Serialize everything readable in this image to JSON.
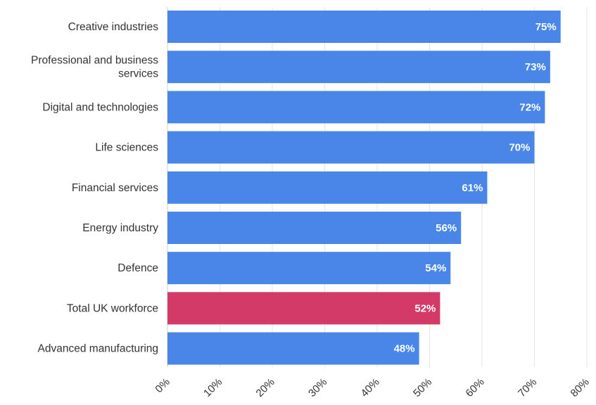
{
  "chart_data": {
    "type": "bar",
    "orientation": "horizontal",
    "categories": [
      "Creative industries",
      "Professional and business services",
      "Digital and technologies",
      "Life sciences",
      "Financial services",
      "Energy industry",
      "Defence",
      "Total UK workforce",
      "Advanced manufacturing"
    ],
    "category_label_lines": [
      [
        "Creative industries"
      ],
      [
        "Professional and business",
        "services"
      ],
      [
        "Digital and technologies"
      ],
      [
        "Life sciences"
      ],
      [
        "Financial services"
      ],
      [
        "Energy industry"
      ],
      [
        "Defence"
      ],
      [
        "Total UK workforce"
      ],
      [
        "Advanced manufacturing"
      ]
    ],
    "values": [
      75,
      73,
      72,
      70,
      61,
      56,
      54,
      52,
      48
    ],
    "data_labels": [
      "75%",
      "73%",
      "72%",
      "70%",
      "61%",
      "56%",
      "54%",
      "52%",
      "48%"
    ],
    "highlight_category": "Total UK workforce",
    "xlim": [
      0,
      80
    ],
    "x_ticks": [
      0,
      10,
      20,
      30,
      40,
      50,
      60,
      70,
      80
    ],
    "x_tick_labels": [
      "0%",
      "10%",
      "20%",
      "30%",
      "40%",
      "50%",
      "60%",
      "70%",
      "80%"
    ],
    "title": "",
    "xlabel": "",
    "ylabel": "",
    "grid": true,
    "legend": "none",
    "colors": {
      "default_bar": "#4a86e8",
      "highlight_bar": "#d33a68",
      "grid": "#e6e6e6",
      "text": "#333333"
    }
  }
}
